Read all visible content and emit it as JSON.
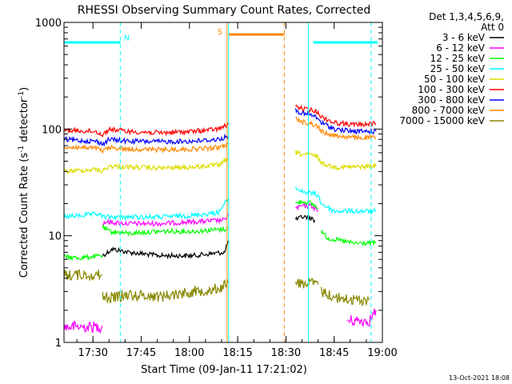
{
  "chart_data": {
    "type": "line",
    "title": "RHESSI Observing Summary Count Rates, Corrected",
    "xlabel": "Start Time (09-Jan-11 17:21:02)",
    "ylabel": "Corrected Count Rate (s⁻¹ detector⁻¹)",
    "ylabel_parts": {
      "base": "Corrected Count Rate (s",
      "exp1": "-1",
      "mid": " detector",
      "exp2": "-1",
      "end": ")"
    },
    "x_range_minutes_after_1721": [
      0,
      99
    ],
    "y_scale": "log",
    "y_range": [
      1,
      1000
    ],
    "x_ticks": [
      {
        "label": "17:30",
        "t": 9
      },
      {
        "label": "17:45",
        "t": 24
      },
      {
        "label": "18:00",
        "t": 39
      },
      {
        "label": "18:15",
        "t": 54
      },
      {
        "label": "18:30",
        "t": 69
      },
      {
        "label": "18:45",
        "t": 84
      },
      {
        "label": "19:00",
        "t": 99
      }
    ],
    "y_ticks": [
      {
        "label": "1",
        "v": 1
      },
      {
        "label": "10",
        "v": 10
      },
      {
        "label": "100",
        "v": 100
      },
      {
        "label": "1000",
        "v": 1000
      }
    ],
    "legend": {
      "header1": "Det 1,3,4,5,6,9,",
      "header2": "Att 0",
      "placement": "right"
    },
    "series": [
      {
        "name": "3 - 6 keV",
        "color": "#000000",
        "segments": [
          {
            "x": [
              12,
              15,
              20,
              30,
              40,
              50,
              51
            ],
            "y": [
              6.5,
              7.5,
              7.0,
              6.5,
              6.5,
              7.0,
              9.0
            ]
          },
          {
            "x": [
              72,
              74,
              76,
              78
            ],
            "y": [
              14,
              15,
              15,
              14
            ]
          }
        ]
      },
      {
        "name": "6 - 12 keV",
        "color": "#ff00ff",
        "segments": [
          {
            "x": [
              0,
              12
            ],
            "y": [
              1.4,
              1.4
            ]
          },
          {
            "x": [
              12,
              13,
              20,
              30,
              40,
              50,
              51
            ],
            "y": [
              13,
              13.5,
              13,
              13,
              13.5,
              14,
              16
            ]
          },
          {
            "x": [
              72,
              74,
              77,
              79
            ],
            "y": [
              18,
              19,
              19,
              17
            ]
          },
          {
            "x": [
              88,
              95,
              97
            ],
            "y": [
              1.6,
              1.6,
              2.0
            ]
          }
        ]
      },
      {
        "name": "12 - 25 keV",
        "color": "#00ff00",
        "segments": [
          {
            "x": [
              0,
              5,
              12
            ],
            "y": [
              6.3,
              6.2,
              6.5
            ]
          },
          {
            "x": [
              12,
              14,
              20,
              30,
              40,
              50,
              51
            ],
            "y": [
              12,
              11,
              10.5,
              11,
              11,
              11.5,
              12
            ]
          },
          {
            "x": [
              72,
              74,
              77,
              79
            ],
            "y": [
              20,
              21,
              20,
              18
            ]
          },
          {
            "x": [
              80,
              82,
              86,
              90,
              95,
              97
            ],
            "y": [
              11,
              9.5,
              9,
              8.5,
              8.5,
              8.5
            ]
          }
        ]
      },
      {
        "name": "25 - 50 keV",
        "color": "#00ffff",
        "segments": [
          {
            "x": [
              0,
              5,
              11,
              12,
              20,
              30,
              40,
              48,
              51
            ],
            "y": [
              15,
              15.5,
              16,
              15,
              15,
              15,
              15.5,
              16.5,
              22
            ]
          },
          {
            "x": [
              72,
              74,
              77,
              79,
              80,
              84,
              90,
              97
            ],
            "y": [
              28,
              26,
              25,
              24,
              20,
              17,
              17,
              17
            ]
          }
        ]
      },
      {
        "name": "50 - 100 keV",
        "color": "#dddd00",
        "segments": [
          {
            "x": [
              0,
              5,
              10,
              12,
              14,
              20,
              30,
              40,
              48,
              51
            ],
            "y": [
              40,
              41,
              42,
              40,
              45,
              44,
              43,
              44,
              46,
              52
            ]
          },
          {
            "x": [
              72,
              74,
              77,
              79,
              80,
              84,
              90,
              97
            ],
            "y": [
              60,
              58,
              57,
              55,
              48,
              44,
              44,
              45
            ]
          }
        ]
      },
      {
        "name": "100 - 300 keV",
        "color": "#ff0000",
        "segments": [
          {
            "x": [
              0,
              5,
              10,
              12,
              14,
              20,
              30,
              40,
              48,
              51
            ],
            "y": [
              98,
              96,
              95,
              88,
              100,
              95,
              92,
              95,
              100,
              110
            ]
          },
          {
            "x": [
              72,
              74,
              77,
              79,
              80,
              84,
              90,
              97
            ],
            "y": [
              165,
              155,
              150,
              145,
              130,
              115,
              110,
              112
            ]
          }
        ]
      },
      {
        "name": "300 - 800 keV",
        "color": "#0000ff",
        "segments": [
          {
            "x": [
              0,
              5,
              10,
              12,
              14,
              20,
              30,
              40,
              48,
              51
            ],
            "y": [
              80,
              78,
              77,
              72,
              80,
              77,
              76,
              77,
              80,
              85
            ]
          },
          {
            "x": [
              72,
              74,
              77,
              79,
              80,
              84,
              90,
              97
            ],
            "y": [
              150,
              140,
              135,
              125,
              115,
              100,
              95,
              95
            ]
          }
        ]
      },
      {
        "name": "800 - 7000 keV",
        "color": "#ff8800",
        "segments": [
          {
            "x": [
              0,
              5,
              10,
              12,
              14,
              20,
              30,
              40,
              48,
              51
            ],
            "y": [
              68,
              67,
              66,
              62,
              67,
              65,
              64,
              65,
              67,
              72
            ]
          },
          {
            "x": [
              72,
              74,
              77,
              79,
              80,
              84,
              90,
              97
            ],
            "y": [
              125,
              118,
              112,
              105,
              95,
              87,
              83,
              83
            ]
          }
        ]
      },
      {
        "name": "7000 - 15000 keV",
        "color": "#888800",
        "segments": [
          {
            "x": [
              0,
              5,
              12
            ],
            "y": [
              4.3,
              4.3,
              4.3
            ]
          },
          {
            "x": [
              12,
              14,
              20,
              30,
              40,
              48,
              51
            ],
            "y": [
              2.7,
              2.6,
              2.8,
              2.7,
              3.0,
              3.2,
              3.6
            ]
          },
          {
            "x": [
              72,
              74,
              77,
              79
            ],
            "y": [
              3.6,
              3.6,
              3.6,
              3.5
            ]
          },
          {
            "x": [
              80,
              85,
              90,
              95
            ],
            "y": [
              3.0,
              2.6,
              2.5,
              2.5
            ]
          }
        ]
      }
    ],
    "annotations": [
      {
        "type": "bar",
        "color": "#00ffff",
        "x": [
          0,
          17.5
        ],
        "y": 650
      },
      {
        "type": "letter",
        "text": "N",
        "color": "#00ffff",
        "x": 19.5,
        "y": 680
      },
      {
        "type": "bar",
        "color": "#00ffff",
        "x": 77.5,
        "y_interval": null,
        "x2": 97.5,
        "y": 650
      },
      {
        "type": "letter",
        "text": "S",
        "color": "#ff8800",
        "x": 48.5,
        "y": 770
      },
      {
        "type": "bar",
        "color": "#ff8800",
        "x": 51.2,
        "x2": 68.5,
        "y": 770
      },
      {
        "type": "vline",
        "color": "#00ffff",
        "style": "dashed",
        "x": 17.5
      },
      {
        "type": "vline",
        "color": "#00ffff",
        "style": "solid",
        "x": 51.2
      },
      {
        "type": "vline",
        "color": "#ff8800",
        "style": "solid",
        "x": 50.7
      },
      {
        "type": "vline",
        "color": "#ff8800",
        "style": "dashed",
        "x": 68.5
      },
      {
        "type": "vline",
        "color": "#00ffff",
        "style": "solid",
        "x": 76.0
      },
      {
        "type": "vline",
        "color": "#00ffff",
        "style": "dashed",
        "x": 95.5
      }
    ],
    "grid": false
  },
  "footer": {
    "timestamp": "13-Oct-2021 18:08"
  }
}
